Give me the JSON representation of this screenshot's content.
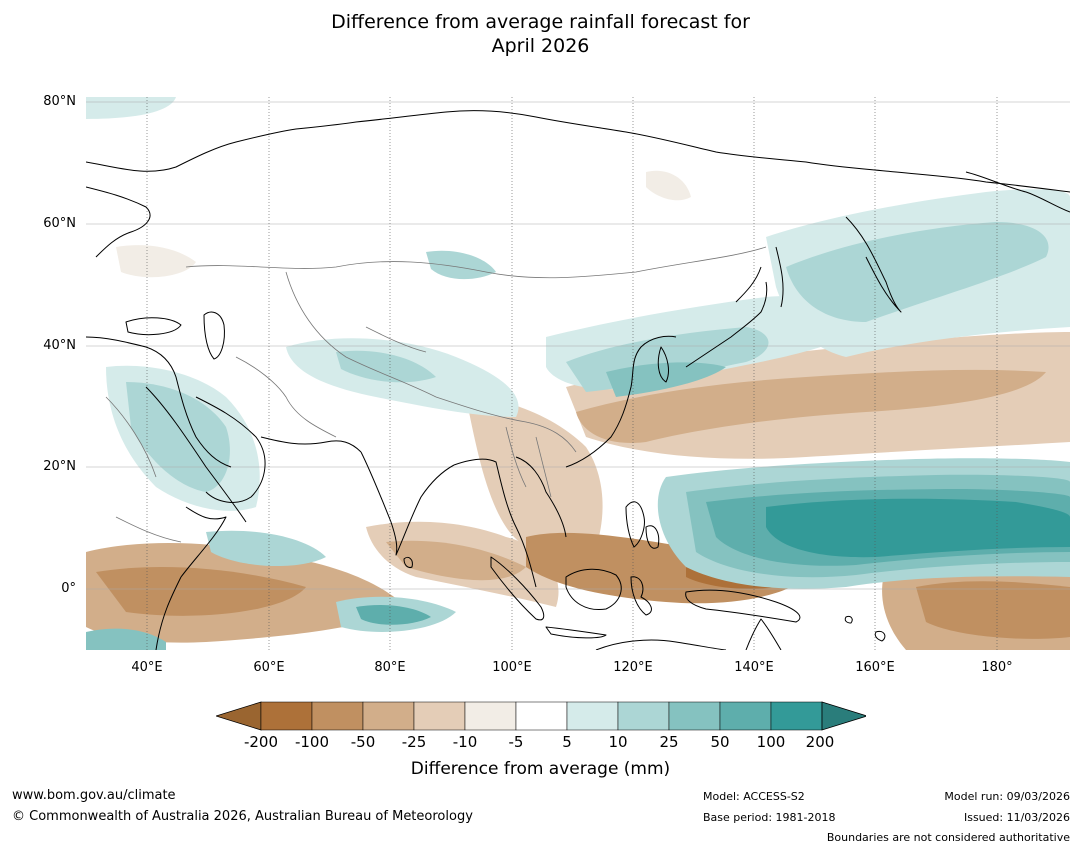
{
  "title": {
    "line1": "Difference from average rainfall forecast for",
    "line2": "April 2026"
  },
  "map": {
    "lat_labels": [
      "80°N",
      "60°N",
      "40°N",
      "20°N",
      "0°"
    ],
    "lon_labels": [
      "40°E",
      "60°E",
      "80°E",
      "100°E",
      "120°E",
      "140°E",
      "160°E",
      "180°"
    ]
  },
  "colorbar": {
    "label": "Difference from average (mm)",
    "ticks": [
      "-200",
      "-100",
      "-50",
      "-25",
      "-10",
      "-5",
      "5",
      "10",
      "25",
      "50",
      "100",
      "200"
    ],
    "colors": {
      "below_min": "#9a6530",
      "c1": "#ad7139",
      "c2": "#c09061",
      "c3": "#d2ae8a",
      "c4": "#e4cdb7",
      "c5": "#f2ede6",
      "c6": "#ffffff",
      "c7": "#d5ebea",
      "c8": "#acd6d5",
      "c9": "#85c2c0",
      "c10": "#5eaeac",
      "c11": "#339a98",
      "above_max": "#2a7d7b"
    }
  },
  "footer": {
    "website": "www.bom.gov.au/climate",
    "copyright": "© Commonwealth of Australia 2026, Australian Bureau of Meteorology",
    "model": "Model: ACCESS-S2",
    "base_period": "Base period: 1981-2018",
    "model_run": "Model run: 09/03/2026",
    "issued": "Issued: 11/03/2026",
    "disclaimer": "Boundaries are not considered authoritative"
  }
}
